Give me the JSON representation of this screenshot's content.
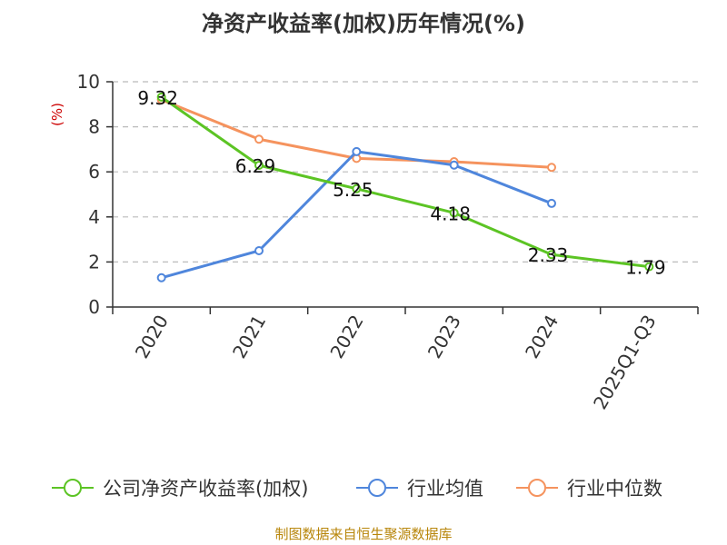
{
  "colors": {
    "company": "#5cc424",
    "industry_avg": "#4f86dc",
    "industry_median": "#f5935e",
    "axis": "#333333",
    "grid": "#bbbbbb",
    "ylabel": "#cc0000",
    "source": "#b8860b"
  },
  "source_text": "制图数据来自恒生聚源数据库",
  "chart_data": {
    "type": "line",
    "title": "净资产收益率(加权)历年情况(%)",
    "xlabel": "",
    "ylabel": "(%)",
    "ylim": [
      0,
      10
    ],
    "yticks": [
      0,
      2,
      4,
      6,
      8,
      10
    ],
    "grid": true,
    "legend_position": "bottom",
    "categories": [
      "2020",
      "2021",
      "2022",
      "2023",
      "2024",
      "2025Q1-Q3"
    ],
    "series": [
      {
        "key": "company",
        "name": "公司净资产收益率(加权)",
        "values": [
          9.32,
          6.29,
          5.25,
          4.18,
          2.33,
          1.79
        ],
        "labels": [
          "9.32",
          "6.29",
          "5.25",
          "4.18",
          "2.33",
          "1.79"
        ]
      },
      {
        "key": "industry_avg",
        "name": "行业均值",
        "values": [
          1.3,
          2.5,
          6.9,
          6.3,
          4.6,
          null
        ]
      },
      {
        "key": "industry_median",
        "name": "行业中位数",
        "values": [
          9.2,
          7.45,
          6.6,
          6.45,
          6.2,
          null
        ]
      }
    ]
  }
}
